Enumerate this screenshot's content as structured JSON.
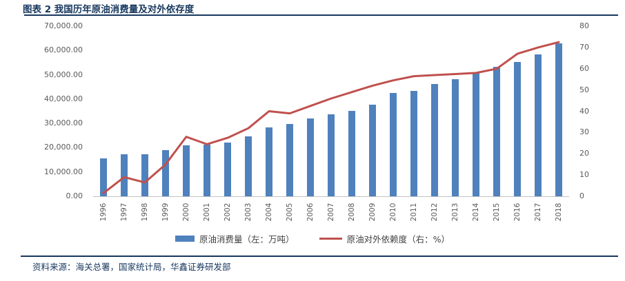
{
  "title": "图表 2 我国历年原油消费量及对外依存度",
  "footer": {
    "source_text": "资料来源：海关总署，国家统计局，华鑫证券研发部"
  },
  "colors": {
    "navy_accent": "#17375E",
    "bar_blue": "#4F81BD",
    "line_red": "#C0504D",
    "axis_text_gray": "#595959",
    "axis_line_gray": "#C3C3C3"
  },
  "legend": [
    {
      "type": "bar",
      "label": "原油消费量（左：万吨）",
      "color": "#4F81BD"
    },
    {
      "type": "line",
      "label": "原油对外依赖度（右：%）",
      "color": "#C0504D"
    }
  ],
  "chart_data": {
    "type": "bar",
    "subtype": "combo-bar-line",
    "title": "图表 2 我国历年原油消费量及对外依存度",
    "grid": false,
    "legend_position": "bottom",
    "categories": [
      "1996",
      "1997",
      "1998",
      "1999",
      "2000",
      "2001",
      "2002",
      "2003",
      "2004",
      "2005",
      "2006",
      "2007",
      "2008",
      "2009",
      "2010",
      "2011",
      "2012",
      "2013",
      "2014",
      "2015",
      "2016",
      "2017",
      "2018"
    ],
    "series": [
      {
        "name": "原油消费量（左：万吨）",
        "type": "bar",
        "axis": "left",
        "color": "#4F81BD",
        "values": [
          15600,
          17400,
          17300,
          18900,
          21000,
          21300,
          22100,
          24600,
          28300,
          29800,
          32000,
          33700,
          35100,
          37700,
          42500,
          43500,
          46300,
          48200,
          51000,
          53400,
          55400,
          58400,
          63000
        ]
      },
      {
        "name": "原油对外依赖度（右：%）",
        "type": "line",
        "axis": "right",
        "color": "#C0504D",
        "values": [
          1.5,
          9,
          6.5,
          15,
          28,
          24.5,
          27.5,
          32,
          40,
          39,
          42.5,
          46,
          49,
          52,
          54.5,
          56.5,
          57,
          57.5,
          58,
          60,
          67,
          70,
          72.5
        ]
      }
    ],
    "left_axis": {
      "min": 0,
      "max": 70000,
      "step": 10000,
      "tick_labels": [
        "70,000.00",
        "60,000.00",
        "50,000.00",
        "40,000.00",
        "30,000.00",
        "20,000.00",
        "10,000.00",
        "0.00"
      ],
      "tick_values": [
        70000,
        60000,
        50000,
        40000,
        30000,
        20000,
        10000,
        0
      ]
    },
    "right_axis": {
      "min": 0,
      "max": 80,
      "step": 10,
      "tick_labels": [
        "80",
        "70",
        "60",
        "50",
        "40",
        "30",
        "20",
        "10",
        "0"
      ],
      "tick_values": [
        80,
        70,
        60,
        50,
        40,
        30,
        20,
        10,
        0
      ]
    }
  }
}
